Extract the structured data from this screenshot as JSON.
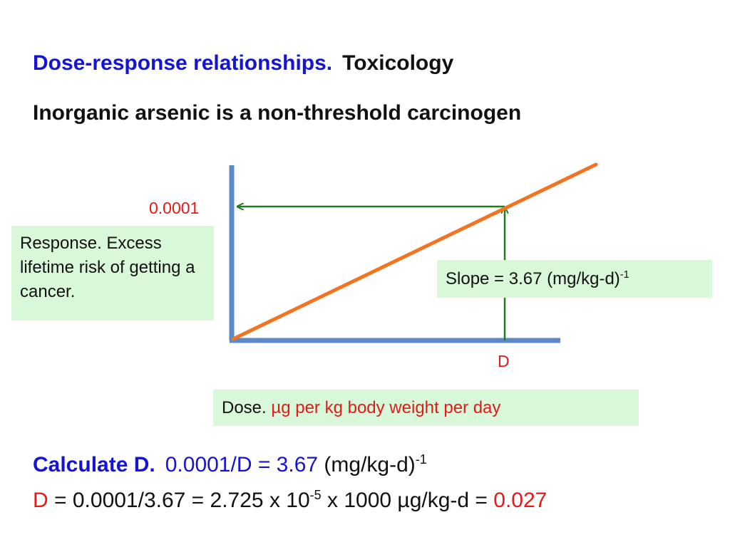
{
  "title": {
    "part1": "Dose-response relationships.",
    "part2": "Toxicology"
  },
  "subtitle": "Inorganic arsenic is a non-threshold carcinogen",
  "diagram": {
    "y_value_label": "0.0001",
    "x_value_label": "D",
    "response_box": "Response. Excess lifetime risk of getting a cancer.",
    "slope_box": {
      "text": "Slope  =  3.67 (mg/kg-d)",
      "exponent": "-1"
    },
    "dose_box": {
      "label": "Dose.",
      "units": "µg per kg body weight per day"
    },
    "colors": {
      "axes": "#5b8ac6",
      "line": "#f47320",
      "arrows": "#1e7e1e",
      "highlight": "#e31a1a",
      "box_fill": "#d9f7d9",
      "title_blue": "#1414d2"
    }
  },
  "calculation": {
    "label": "Calculate D.",
    "equation": "0.0001/D = 3.67",
    "unit": "(mg/kg-d)",
    "unit_exponent": "-1",
    "line2_d": "D",
    "line2_mid": " = 0.0001/3.67 = 2.725 x 10",
    "line2_exponent": "-5",
    "line2_tail": " x 1000 µg/kg-d = ",
    "line2_result": "0.027"
  }
}
